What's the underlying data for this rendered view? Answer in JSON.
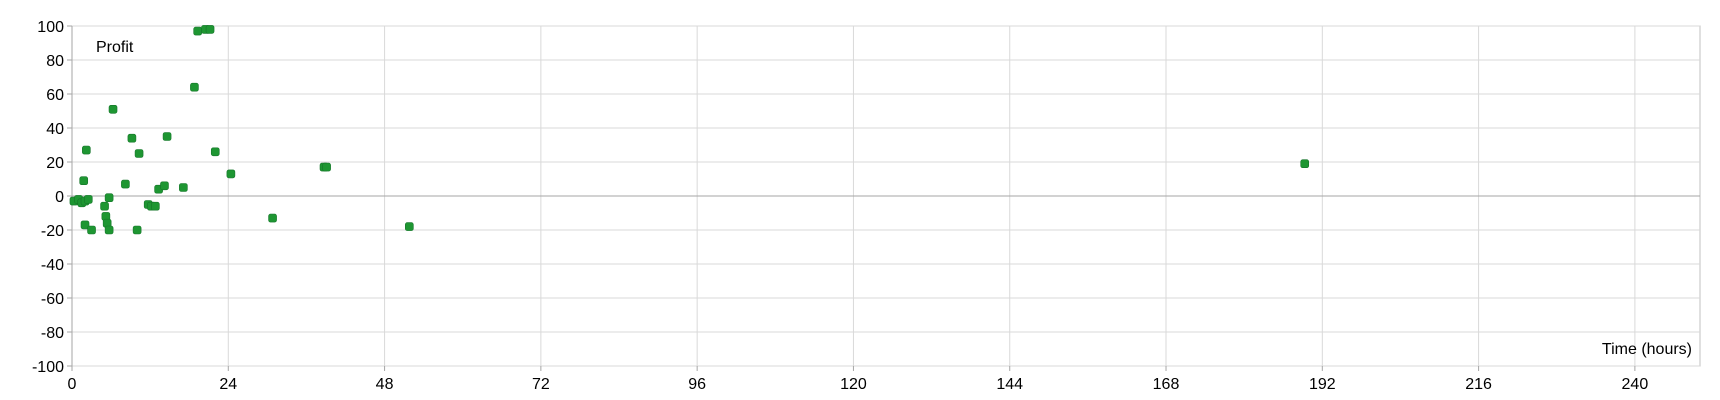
{
  "chart_data": {
    "type": "scatter",
    "title": "",
    "xlabel": "Time (hours)",
    "ylabel": "Profit",
    "xlim": [
      0,
      250
    ],
    "ylim": [
      -100,
      100
    ],
    "x_ticks": [
      0,
      24,
      48,
      72,
      96,
      120,
      144,
      168,
      192,
      216,
      240
    ],
    "y_ticks": [
      100,
      80,
      60,
      40,
      20,
      0,
      -20,
      -40,
      -60,
      -80,
      -100
    ],
    "grid": true,
    "legend": "none",
    "marker_color": "#1e9632",
    "series": [
      {
        "points": [
          {
            "x": 0.3,
            "y": -3
          },
          {
            "x": 1.0,
            "y": -2
          },
          {
            "x": 1.5,
            "y": -4
          },
          {
            "x": 2.0,
            "y": -3
          },
          {
            "x": 2.5,
            "y": -2
          },
          {
            "x": 1.8,
            "y": 9
          },
          {
            "x": 2.2,
            "y": 27
          },
          {
            "x": 2.0,
            "y": -17
          },
          {
            "x": 3.0,
            "y": -20
          },
          {
            "x": 5.0,
            "y": -6
          },
          {
            "x": 5.2,
            "y": -12
          },
          {
            "x": 5.4,
            "y": -16
          },
          {
            "x": 5.7,
            "y": -20
          },
          {
            "x": 5.7,
            "y": -1
          },
          {
            "x": 6.3,
            "y": 51
          },
          {
            "x": 8.2,
            "y": 7
          },
          {
            "x": 9.2,
            "y": 34
          },
          {
            "x": 10.3,
            "y": 25
          },
          {
            "x": 10.0,
            "y": -20
          },
          {
            "x": 11.7,
            "y": -5
          },
          {
            "x": 12.2,
            "y": -6
          },
          {
            "x": 12.8,
            "y": -6
          },
          {
            "x": 13.3,
            "y": 4
          },
          {
            "x": 14.2,
            "y": 6
          },
          {
            "x": 14.6,
            "y": 35
          },
          {
            "x": 17.1,
            "y": 5
          },
          {
            "x": 18.8,
            "y": 64
          },
          {
            "x": 19.3,
            "y": 97
          },
          {
            "x": 20.5,
            "y": 98
          },
          {
            "x": 21.2,
            "y": 98
          },
          {
            "x": 22.0,
            "y": 26
          },
          {
            "x": 24.4,
            "y": 13
          },
          {
            "x": 30.8,
            "y": -13
          },
          {
            "x": 38.7,
            "y": 17
          },
          {
            "x": 39.1,
            "y": 17
          },
          {
            "x": 51.8,
            "y": -18
          },
          {
            "x": 189.3,
            "y": 19
          }
        ]
      }
    ]
  }
}
